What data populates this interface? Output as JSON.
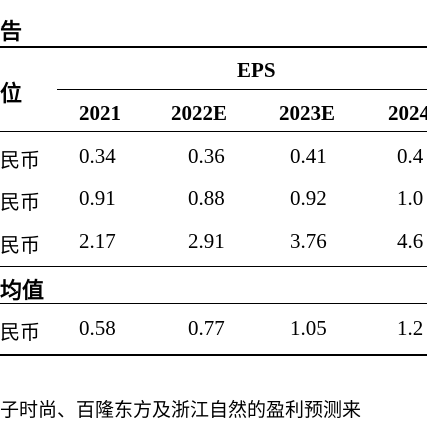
{
  "table": {
    "title_fragment": "告",
    "unit_header": "位",
    "eps_header": "EPS",
    "years": [
      "2021",
      "2022E",
      "2023E",
      "2024"
    ],
    "rows": [
      {
        "label": "民币",
        "values": [
          "0.34",
          "0.36",
          "0.41",
          "0.4"
        ]
      },
      {
        "label": "民币",
        "values": [
          "0.91",
          "0.88",
          "0.92",
          "1.0"
        ]
      },
      {
        "label": "民币",
        "values": [
          "2.17",
          "2.91",
          "3.76",
          "4.6"
        ]
      }
    ],
    "section_label": "均值",
    "avg_row": {
      "label": "民币",
      "values": [
        "0.58",
        "0.77",
        "1.05",
        "1.2"
      ]
    }
  },
  "footnote": "子时尚、百隆东方及浙江自然的盈利预测来"
}
